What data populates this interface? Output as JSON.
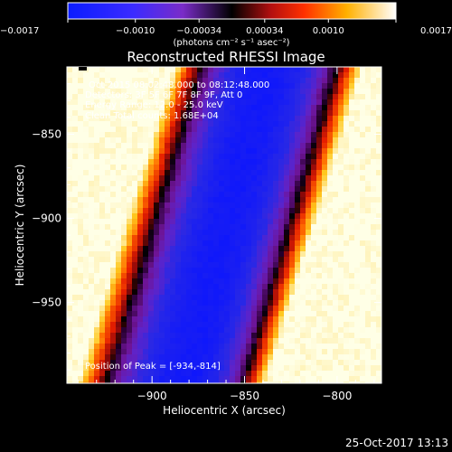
{
  "chart_data": {
    "type": "heatmap",
    "title": "Reconstructed RHESSI Image",
    "xlabel": "Heliocentric X (arcsec)",
    "ylabel": "Heliocentric Y (arcsec)",
    "xlim": [
      -946,
      -776
    ],
    "ylim": [
      -998,
      -810
    ],
    "x_ticks": [
      {
        "value": -900,
        "label": "−900"
      },
      {
        "value": -850,
        "label": "−850"
      },
      {
        "value": -800,
        "label": "−800"
      }
    ],
    "y_ticks": [
      {
        "value": -850,
        "label": "−850"
      },
      {
        "value": -900,
        "label": "−900"
      },
      {
        "value": -950,
        "label": "−950"
      }
    ],
    "colorbar": {
      "range": [
        -0.0017,
        0.0017
      ],
      "ticks": [
        {
          "value": -0.0017,
          "label": "−0.0017"
        },
        {
          "value": -0.001,
          "label": "−0.0010"
        },
        {
          "value": -0.00034,
          "label": "−0.00034"
        },
        {
          "value": 0.00034,
          "label": "0.00034"
        },
        {
          "value": 0.001,
          "label": "0.0010"
        },
        {
          "value": 0.0017,
          "label": "0.0017"
        }
      ],
      "unit_label": "(photons cm⁻² s⁻¹ asec⁻²)"
    },
    "annotations": [
      "Oct-2015 08:02:48.000 to 08:12:48.000",
      "Detectors: 3F 5F 6F 7F 8F 9F, Att 0",
      "Energy Range: 12.0 - 25.0 keV",
      "Clean     Total counts: 1.68E+04"
    ],
    "peak_label": "Position of Peak = [-934,-814]",
    "peak_position": [
      -934,
      -814
    ],
    "image_description": "Diagonal band structure: high (yellow-white) on left and right edges, dark red/black transition, purple, and blue minimum along a diagonal trough"
  },
  "footer": {
    "timestamp": "25-Oct-2017 13:13"
  }
}
